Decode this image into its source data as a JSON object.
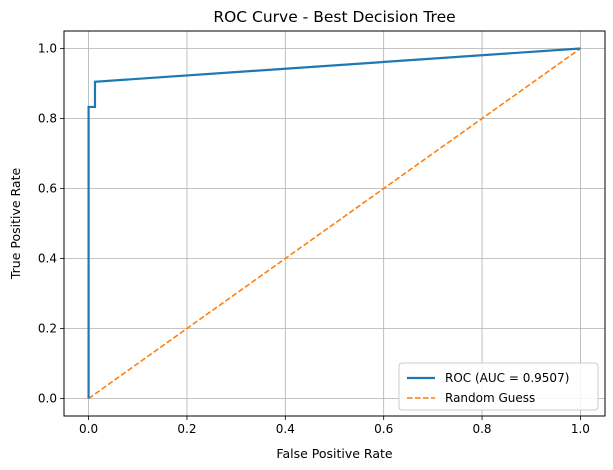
{
  "chart_data": {
    "type": "line",
    "title": "ROC Curve - Best Decision Tree",
    "xlabel": "False Positive Rate",
    "ylabel": "True Positive Rate",
    "xlim": [
      -0.05,
      1.05
    ],
    "ylim": [
      -0.05,
      1.05
    ],
    "xticks": [
      0.0,
      0.2,
      0.4,
      0.6,
      0.8,
      1.0
    ],
    "yticks": [
      0.0,
      0.2,
      0.4,
      0.6,
      0.8,
      1.0
    ],
    "xtick_labels": [
      "0.0",
      "0.2",
      "0.4",
      "0.6",
      "0.8",
      "1.0"
    ],
    "ytick_labels": [
      "0.0",
      "0.2",
      "0.4",
      "0.6",
      "0.8",
      "1.0"
    ],
    "grid": true,
    "legend_position": "lower-right",
    "series": [
      {
        "name": "ROC (AUC = 0.9507)",
        "color": "#1f77b4",
        "style": "solid",
        "x": [
          0.0,
          0.0,
          0.0,
          0.013,
          0.013,
          1.0
        ],
        "y": [
          0.0,
          0.833,
          0.833,
          0.833,
          0.905,
          1.0
        ]
      },
      {
        "name": "Random Guess",
        "color": "#ff7f0e",
        "style": "dashed",
        "x": [
          0.0,
          1.0
        ],
        "y": [
          0.0,
          1.0
        ]
      }
    ]
  }
}
